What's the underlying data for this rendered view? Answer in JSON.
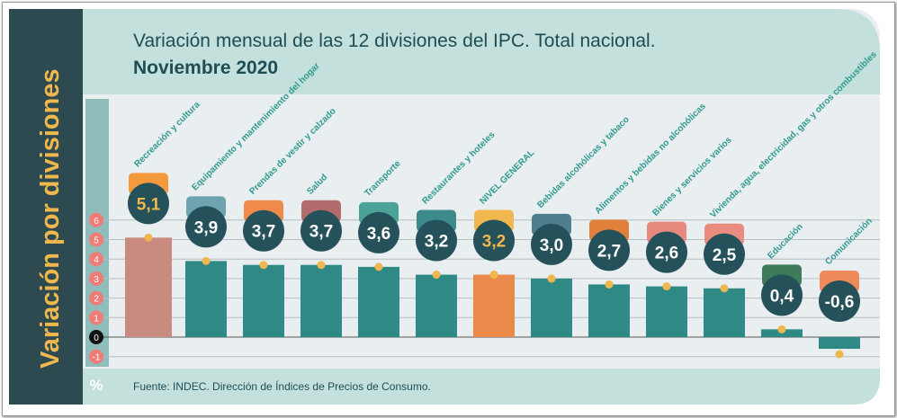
{
  "title_line1": "Variación mensual de las 12 divisiones del IPC. Total nacional.",
  "title_line2": "Noviembre 2020",
  "side_title": "Variación por divisiones",
  "unit_label": "%",
  "source": "Fuente: INDEC. Dirección de Índices de Precios de Consumo.",
  "colors": {
    "sidebar": "#2c4a50",
    "bar": "#2f8a85",
    "bubble": "#24515a",
    "axis_badge": "#ef7c79",
    "title_dark": "#1e4d55",
    "accent": "#f0b74f",
    "label": "#2f9a8f"
  },
  "chart_data": {
    "type": "bar",
    "categories": [
      "Recreación y cultura",
      "Equipamiento y mantenimiento del hogar",
      "Prendas de vestir y calzado",
      "Salud",
      "Transporte",
      "Restaurantes y hoteles",
      "NIVEL GENERAL",
      "Bebidas alcohólicas y tabaco",
      "Alimentos y bebidas no alcohólicas",
      "Bienes y servicios varios",
      "Vivienda, agua, electricidad, gas y otros combustibles",
      "Educación",
      "Comunicación"
    ],
    "values": [
      5.1,
      3.9,
      3.7,
      3.7,
      3.6,
      3.2,
      3.2,
      3.0,
      2.7,
      2.6,
      2.5,
      0.4,
      -0.6
    ],
    "value_labels": [
      "5,1",
      "3,9",
      "3,7",
      "3,7",
      "3,6",
      "3,2",
      "3,2",
      "3,0",
      "2,7",
      "2,6",
      "2,5",
      "0,4",
      "-0,6"
    ],
    "y_ticks": [
      "6",
      "5",
      "4",
      "3",
      "2",
      "1",
      "0",
      "-1"
    ],
    "ylim": [
      -1,
      6
    ],
    "grid": true
  }
}
